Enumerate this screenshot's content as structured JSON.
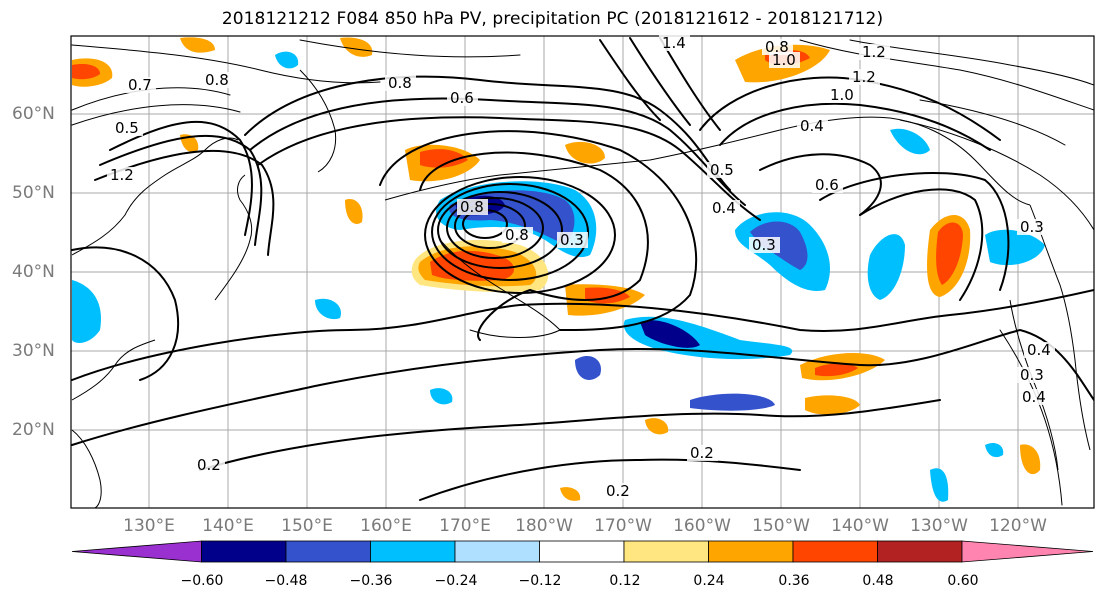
{
  "title": "2018121212 F084 850 hPa PV, precipitation PC (2018121612 - 2018121712)",
  "lat_labels": [
    "60°N",
    "50°N",
    "40°N",
    "30°N",
    "20°N"
  ],
  "lon_labels": [
    "130°E",
    "140°E",
    "150°E",
    "160°E",
    "170°E",
    "180°W",
    "170°W",
    "160°W",
    "150°W",
    "140°W",
    "130°W",
    "120°W"
  ],
  "contour_labels": [
    "1.4",
    "0.8",
    "1.0",
    "1.2",
    "0.8",
    "0.8",
    "0.7",
    "0.6",
    "0.5",
    "1.0",
    "1.2",
    "0.4",
    "0.8",
    "0.6",
    "0.5",
    "0.4",
    "0.3",
    "0.8",
    "0.3",
    "0.3",
    "0.4",
    "0.2",
    "0.2",
    "0.2",
    "0.3",
    "0.4",
    "1.2"
  ],
  "colorbar": {
    "ticks": [
      "−0.60",
      "−0.48",
      "−0.36",
      "−0.24",
      "−0.12",
      "0.12",
      "0.24",
      "0.36",
      "0.48",
      "0.60"
    ],
    "colors": [
      "#9b30d0",
      "#00008b",
      "#3352cc",
      "#00bfff",
      "#b0e0ff",
      "#ffffff",
      "#ffe680",
      "#ffa500",
      "#ff4500",
      "#b22222",
      "#ff85b0"
    ]
  }
}
